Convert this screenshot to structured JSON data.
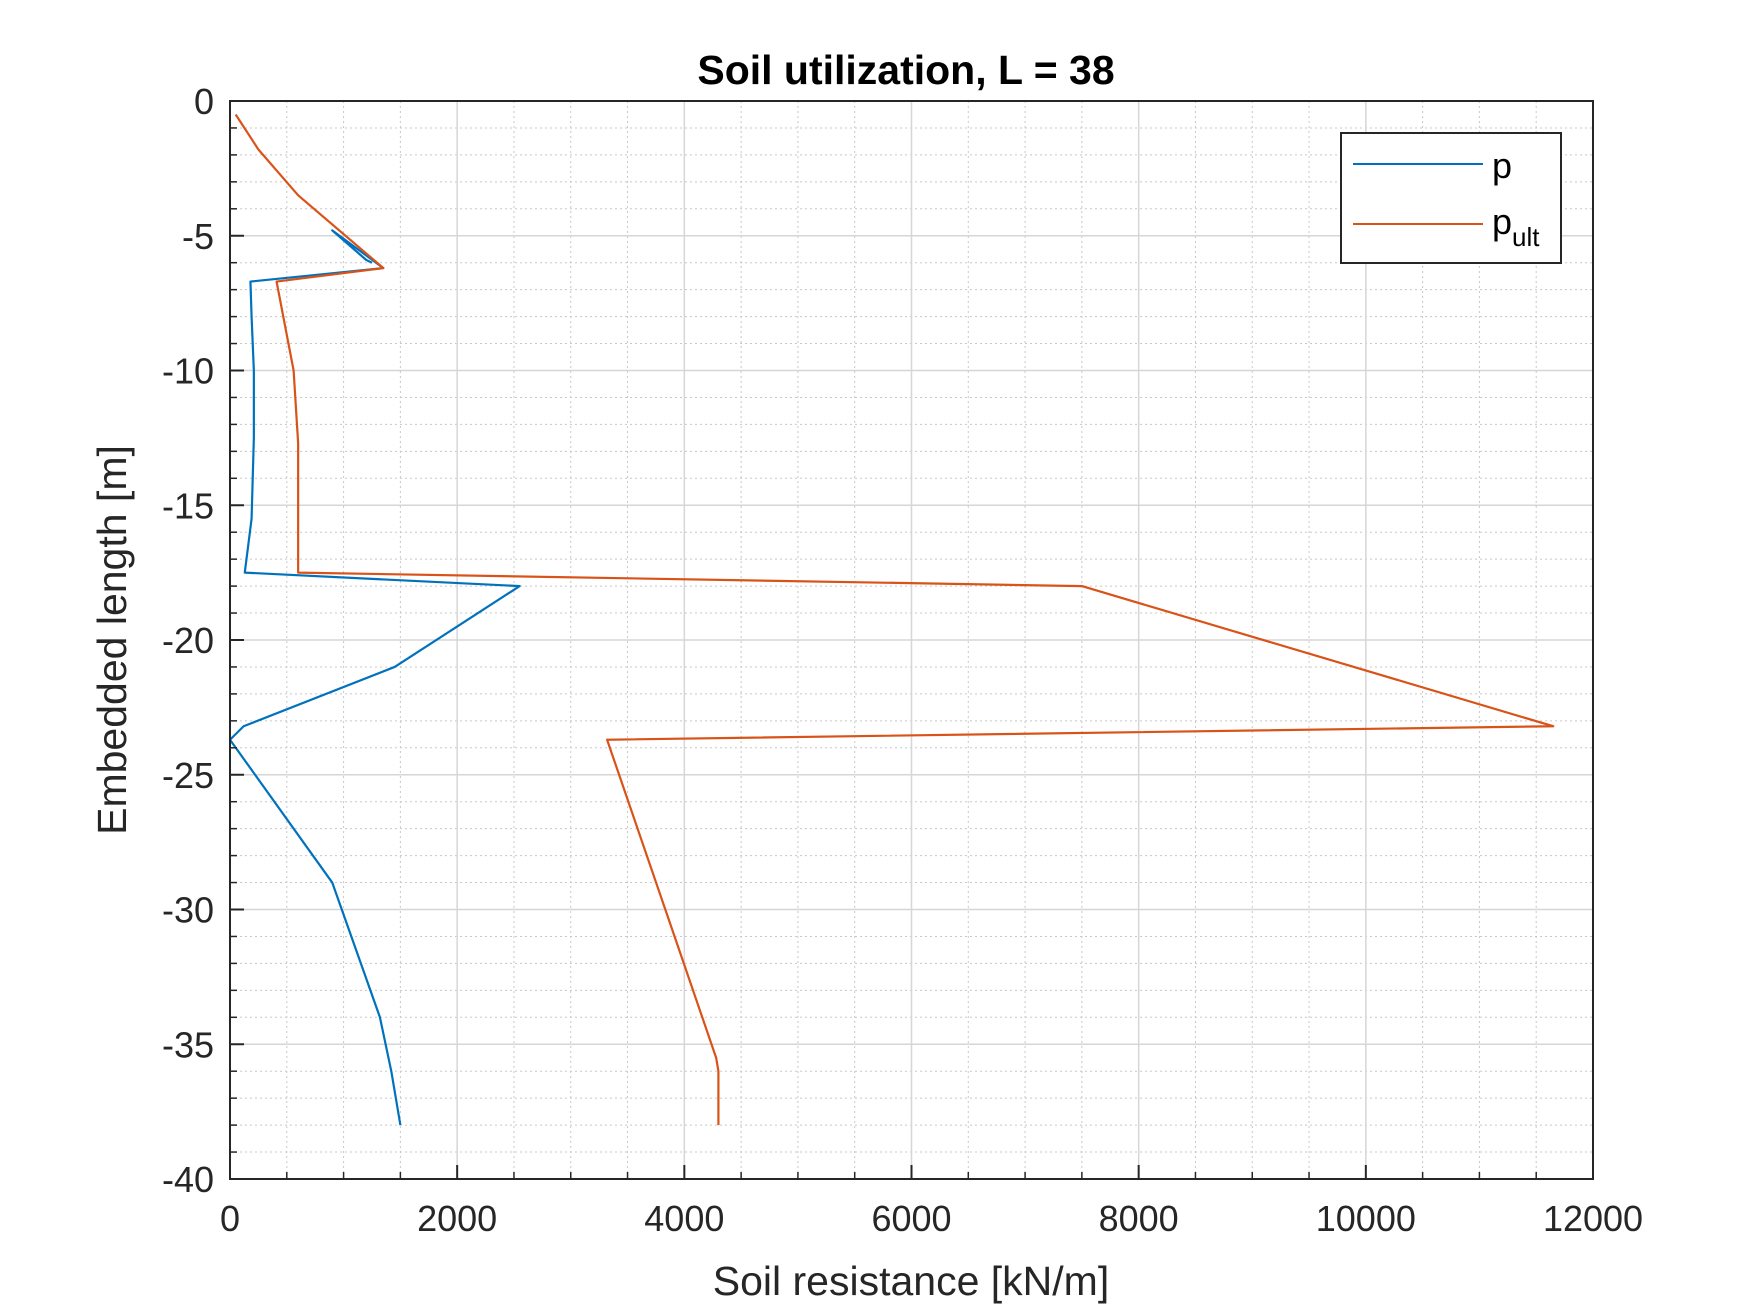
{
  "chart_data": {
    "type": "line",
    "title": "Soil utilization, L = 38",
    "xlabel": "Soil resistance [kN/m]",
    "ylabel": "Embedded length [m]",
    "xlim": [
      0,
      12000
    ],
    "ylim": [
      -40,
      0
    ],
    "xticks": [
      0,
      2000,
      4000,
      6000,
      8000,
      10000,
      12000
    ],
    "yticks": [
      0,
      -5,
      -10,
      -15,
      -20,
      -25,
      -30,
      -35,
      -40
    ],
    "grid": true,
    "minor_grid": true,
    "legend_position": "top-right",
    "series": [
      {
        "name": "p",
        "color": "#0072BD",
        "x": [
          1250,
          1200,
          900,
          1350,
          180,
          190,
          210,
          210,
          190,
          130,
          2550,
          1450,
          120,
          0,
          900,
          1320,
          1420,
          1500
        ],
        "y": [
          -6.0,
          -5.9,
          -4.8,
          -6.2,
          -6.7,
          -8.0,
          -10.0,
          -12.5,
          -15.5,
          -17.5,
          -18.0,
          -21.0,
          -23.2,
          -23.7,
          -29.0,
          -34.0,
          -36.0,
          -38.0
        ]
      },
      {
        "name": "pult",
        "name_main": "p",
        "name_sub": "ult",
        "color": "#D95319",
        "x": [
          50,
          250,
          600,
          1350,
          410,
          560,
          600,
          600,
          7500,
          11650,
          3320,
          4280,
          4300,
          4300
        ],
        "y": [
          -0.5,
          -1.8,
          -3.5,
          -6.2,
          -6.7,
          -10.0,
          -12.7,
          -17.5,
          -18.0,
          -23.2,
          -23.7,
          -35.5,
          -36.0,
          -38.0
        ]
      }
    ]
  }
}
